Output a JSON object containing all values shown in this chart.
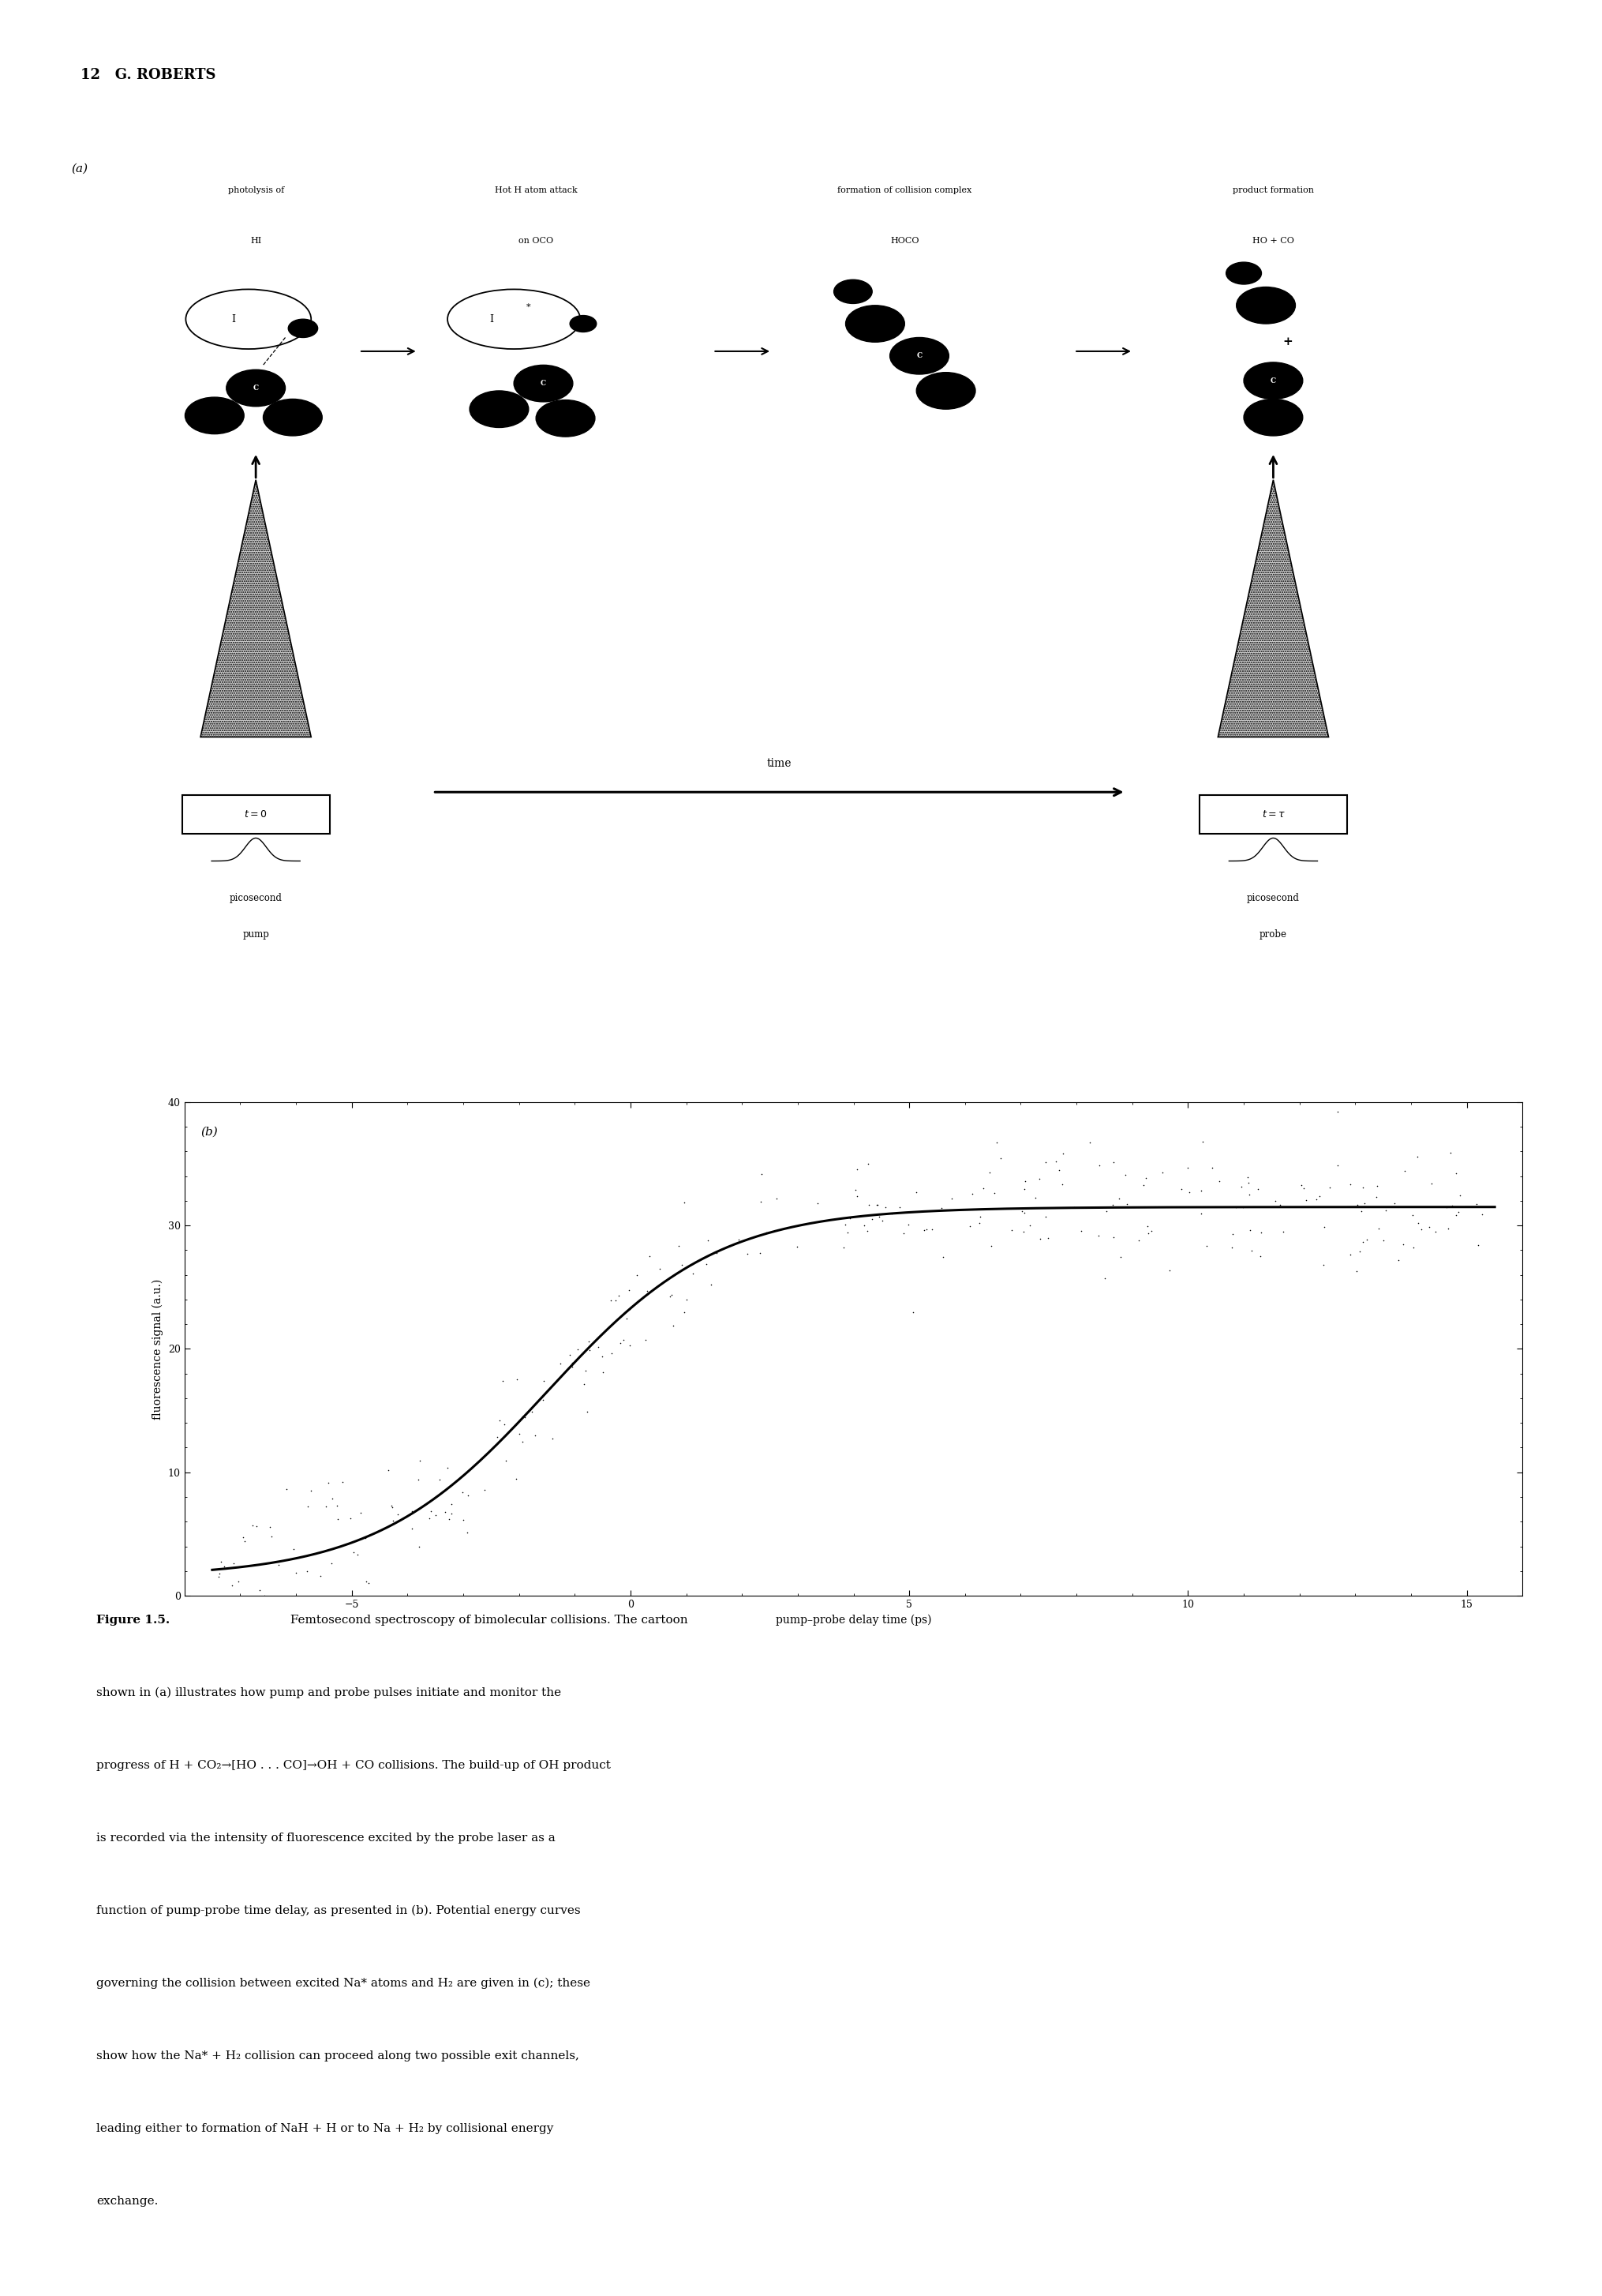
{
  "page_header": "12   G. ROBERTS",
  "panel_a_label": "(a)",
  "panel_b_label": "(b)",
  "cartoon_labels": [
    [
      "photolysis of",
      "HI"
    ],
    [
      "Hot H atom attack",
      "on OCO"
    ],
    [
      "formation of collision complex",
      "HOCO"
    ],
    [
      "product formation",
      "HO + CO"
    ]
  ],
  "time_label": "time",
  "pump_text": [
    "picosecond",
    "pump"
  ],
  "probe_text": [
    "picosecond",
    "probe"
  ],
  "xlabel": "pump–probe delay time (ps)",
  "ylabel": "fluorescence signal (a.u.)",
  "xlim": [
    -8,
    16
  ],
  "ylim": [
    0,
    40
  ],
  "xticks": [
    -5,
    0,
    5,
    10,
    15
  ],
  "yticks": [
    0,
    10,
    20,
    30,
    40
  ],
  "curve_color": "#000000",
  "scatter_color": "#000000",
  "background_color": "#ffffff",
  "scatter_seed": 42,
  "sigmoid_amplitude": 30.0,
  "sigmoid_midpoint": -1.5,
  "sigmoid_steepness": 0.65,
  "sigmoid_baseline": 1.5,
  "figure_caption_bold": "Figure 1.5.",
  "figure_caption_normal": " Femtosecond spectroscopy of bimolecular collisions. The cartoon shown in (a) illustrates how pump and probe pulses initiate and monitor the progress of H + CO₂→[HO . . . CO]→OH + CO collisions. The build-up of OH product is recorded via the intensity of fluorescence excited by the probe laser as a function of pump-probe time delay, as presented in (b). Potential energy curves governing the collision between excited Na* atoms and H₂ are given in (c); these show how the Na* + H₂ collision can proceed along two possible exit channels, leading either to formation of NaH + H or to Na + H₂ by collisional energy exchange."
}
